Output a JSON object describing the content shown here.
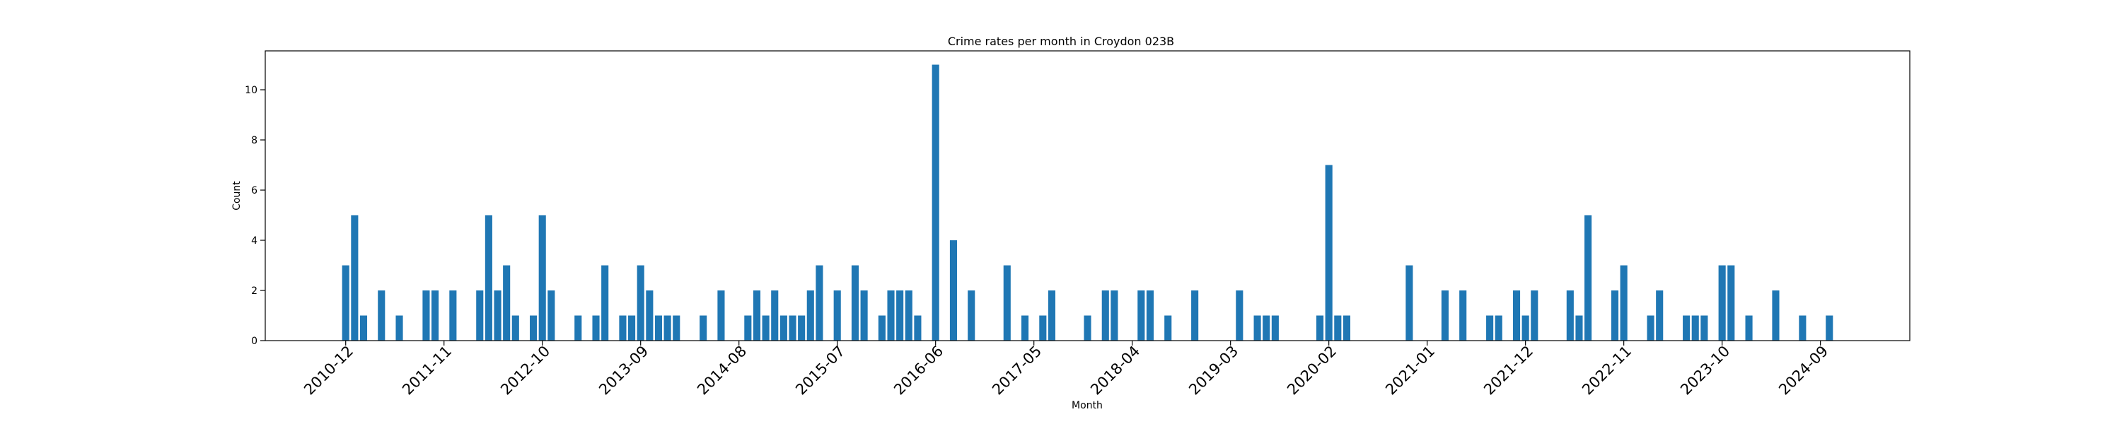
{
  "chart_data": {
    "type": "bar",
    "title": "Crime rates per month in Croydon 023B",
    "xlabel": "Month",
    "ylabel": "Count",
    "ylim": [
      0,
      11.55
    ],
    "yticks": [
      0,
      2,
      4,
      6,
      8,
      10
    ],
    "xlim": [
      -9,
      175
    ],
    "xtick_positions": [
      0,
      11,
      22,
      33,
      44,
      55,
      66,
      77,
      88,
      99,
      110,
      121,
      132,
      143,
      154,
      165
    ],
    "xticks": [
      "2010-12",
      "2011-11",
      "2012-10",
      "2013-09",
      "2014-08",
      "2015-07",
      "2016-06",
      "2017-05",
      "2018-04",
      "2019-03",
      "2020-02",
      "2021-01",
      "2021-12",
      "2022-11",
      "2023-10",
      "2024-09"
    ],
    "color": "#1f77b4",
    "grid": false,
    "legend": "none",
    "data": [
      {
        "x": 0,
        "y": 3
      },
      {
        "x": 1,
        "y": 5
      },
      {
        "x": 2,
        "y": 1
      },
      {
        "x": 4,
        "y": 2
      },
      {
        "x": 6,
        "y": 1
      },
      {
        "x": 9,
        "y": 2
      },
      {
        "x": 10,
        "y": 2
      },
      {
        "x": 12,
        "y": 2
      },
      {
        "x": 15,
        "y": 2
      },
      {
        "x": 16,
        "y": 5
      },
      {
        "x": 17,
        "y": 2
      },
      {
        "x": 18,
        "y": 3
      },
      {
        "x": 19,
        "y": 1
      },
      {
        "x": 21,
        "y": 1
      },
      {
        "x": 22,
        "y": 5
      },
      {
        "x": 23,
        "y": 2
      },
      {
        "x": 26,
        "y": 1
      },
      {
        "x": 28,
        "y": 1
      },
      {
        "x": 29,
        "y": 3
      },
      {
        "x": 31,
        "y": 1
      },
      {
        "x": 32,
        "y": 1
      },
      {
        "x": 33,
        "y": 3
      },
      {
        "x": 34,
        "y": 2
      },
      {
        "x": 35,
        "y": 1
      },
      {
        "x": 36,
        "y": 1
      },
      {
        "x": 37,
        "y": 1
      },
      {
        "x": 40,
        "y": 1
      },
      {
        "x": 42,
        "y": 2
      },
      {
        "x": 45,
        "y": 1
      },
      {
        "x": 46,
        "y": 2
      },
      {
        "x": 47,
        "y": 1
      },
      {
        "x": 48,
        "y": 2
      },
      {
        "x": 49,
        "y": 1
      },
      {
        "x": 50,
        "y": 1
      },
      {
        "x": 51,
        "y": 1
      },
      {
        "x": 52,
        "y": 2
      },
      {
        "x": 53,
        "y": 3
      },
      {
        "x": 55,
        "y": 2
      },
      {
        "x": 57,
        "y": 3
      },
      {
        "x": 58,
        "y": 2
      },
      {
        "x": 60,
        "y": 1
      },
      {
        "x": 61,
        "y": 2
      },
      {
        "x": 62,
        "y": 2
      },
      {
        "x": 63,
        "y": 2
      },
      {
        "x": 64,
        "y": 1
      },
      {
        "x": 66,
        "y": 11
      },
      {
        "x": 68,
        "y": 4
      },
      {
        "x": 70,
        "y": 2
      },
      {
        "x": 74,
        "y": 3
      },
      {
        "x": 76,
        "y": 1
      },
      {
        "x": 78,
        "y": 1
      },
      {
        "x": 79,
        "y": 2
      },
      {
        "x": 83,
        "y": 1
      },
      {
        "x": 85,
        "y": 2
      },
      {
        "x": 86,
        "y": 2
      },
      {
        "x": 89,
        "y": 2
      },
      {
        "x": 90,
        "y": 2
      },
      {
        "x": 92,
        "y": 1
      },
      {
        "x": 95,
        "y": 2
      },
      {
        "x": 100,
        "y": 2
      },
      {
        "x": 102,
        "y": 1
      },
      {
        "x": 103,
        "y": 1
      },
      {
        "x": 104,
        "y": 1
      },
      {
        "x": 109,
        "y": 1
      },
      {
        "x": 110,
        "y": 7
      },
      {
        "x": 111,
        "y": 1
      },
      {
        "x": 112,
        "y": 1
      },
      {
        "x": 119,
        "y": 3
      },
      {
        "x": 123,
        "y": 2
      },
      {
        "x": 125,
        "y": 2
      },
      {
        "x": 128,
        "y": 1
      },
      {
        "x": 129,
        "y": 1
      },
      {
        "x": 131,
        "y": 2
      },
      {
        "x": 132,
        "y": 1
      },
      {
        "x": 133,
        "y": 2
      },
      {
        "x": 137,
        "y": 2
      },
      {
        "x": 138,
        "y": 1
      },
      {
        "x": 139,
        "y": 5
      },
      {
        "x": 142,
        "y": 2
      },
      {
        "x": 143,
        "y": 3
      },
      {
        "x": 146,
        "y": 1
      },
      {
        "x": 147,
        "y": 2
      },
      {
        "x": 150,
        "y": 1
      },
      {
        "x": 151,
        "y": 1
      },
      {
        "x": 152,
        "y": 1
      },
      {
        "x": 154,
        "y": 3
      },
      {
        "x": 155,
        "y": 3
      },
      {
        "x": 157,
        "y": 1
      },
      {
        "x": 160,
        "y": 2
      },
      {
        "x": 163,
        "y": 1
      },
      {
        "x": 166,
        "y": 1
      }
    ]
  }
}
